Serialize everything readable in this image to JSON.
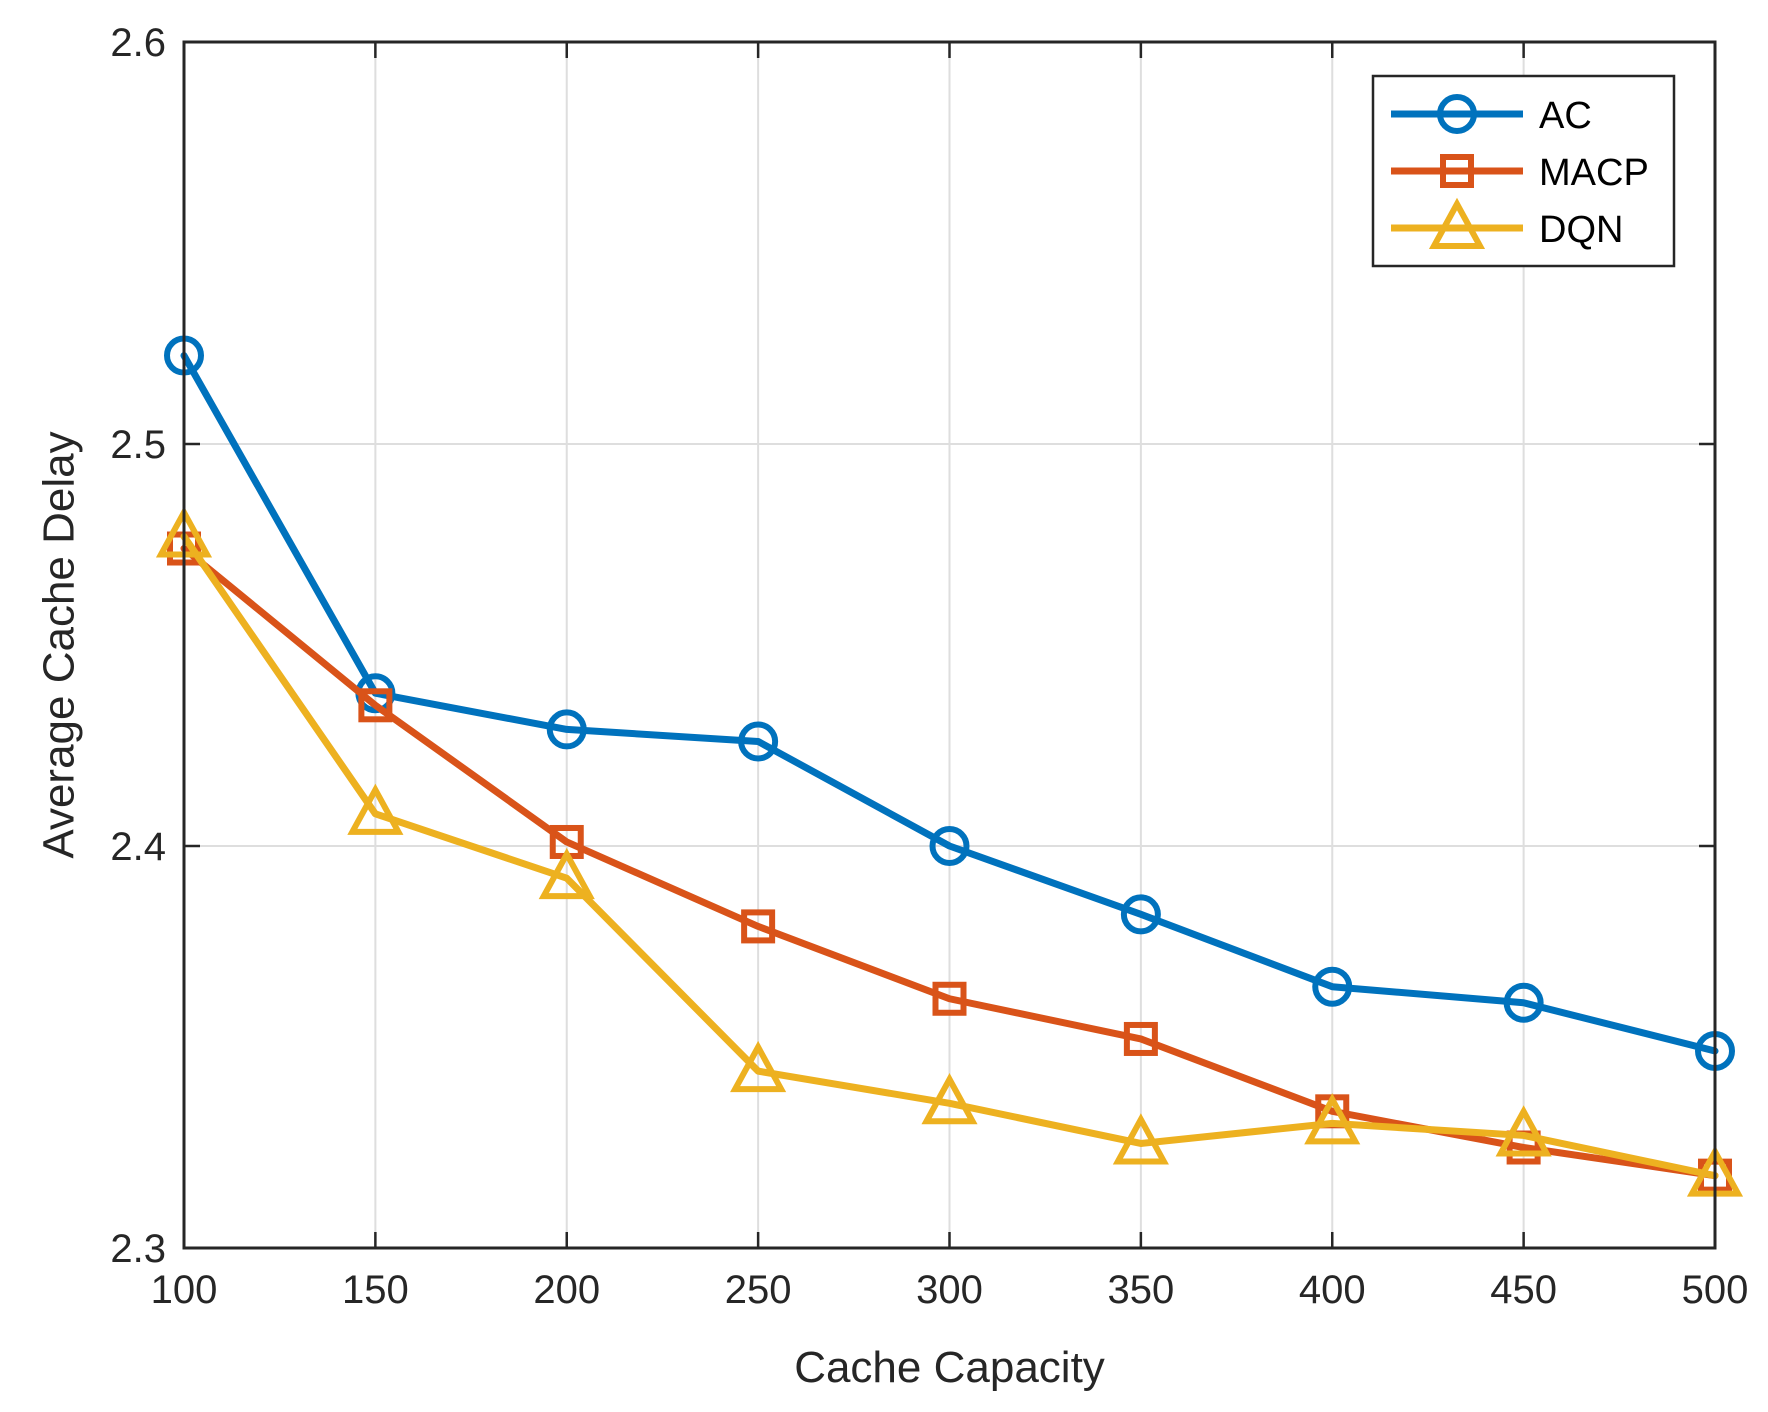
{
  "chart_data": {
    "type": "line",
    "title": "",
    "xlabel": "Cache Capacity",
    "ylabel": "Average Cache Delay",
    "x": [
      100,
      150,
      200,
      250,
      300,
      350,
      400,
      450,
      500
    ],
    "xlim": [
      100,
      500
    ],
    "ylim": [
      2.3,
      2.6
    ],
    "xticks": [
      100,
      150,
      200,
      250,
      300,
      350,
      400,
      450,
      500
    ],
    "xtick_labels": [
      "100",
      "150",
      "200",
      "250",
      "300",
      "350",
      "400",
      "450",
      "500"
    ],
    "yticks": [
      2.3,
      2.4,
      2.5,
      2.6
    ],
    "ytick_labels": [
      "2.3",
      "2.4",
      "2.5",
      "2.6"
    ],
    "grid": true,
    "legend_position": "top-right",
    "series": [
      {
        "name": "AC",
        "marker": "circle",
        "color": "#0072BD",
        "values": [
          2.522,
          2.438,
          2.429,
          2.426,
          2.4,
          2.383,
          2.365,
          2.361,
          2.349
        ]
      },
      {
        "name": "MACP",
        "marker": "square",
        "color": "#D95319",
        "values": [
          2.474,
          2.435,
          2.401,
          2.38,
          2.362,
          2.352,
          2.334,
          2.325,
          2.318
        ]
      },
      {
        "name": "DQN",
        "marker": "triangle",
        "color": "#EDB120",
        "values": [
          2.477,
          2.408,
          2.392,
          2.344,
          2.336,
          2.326,
          2.331,
          2.328,
          2.318
        ]
      }
    ]
  }
}
